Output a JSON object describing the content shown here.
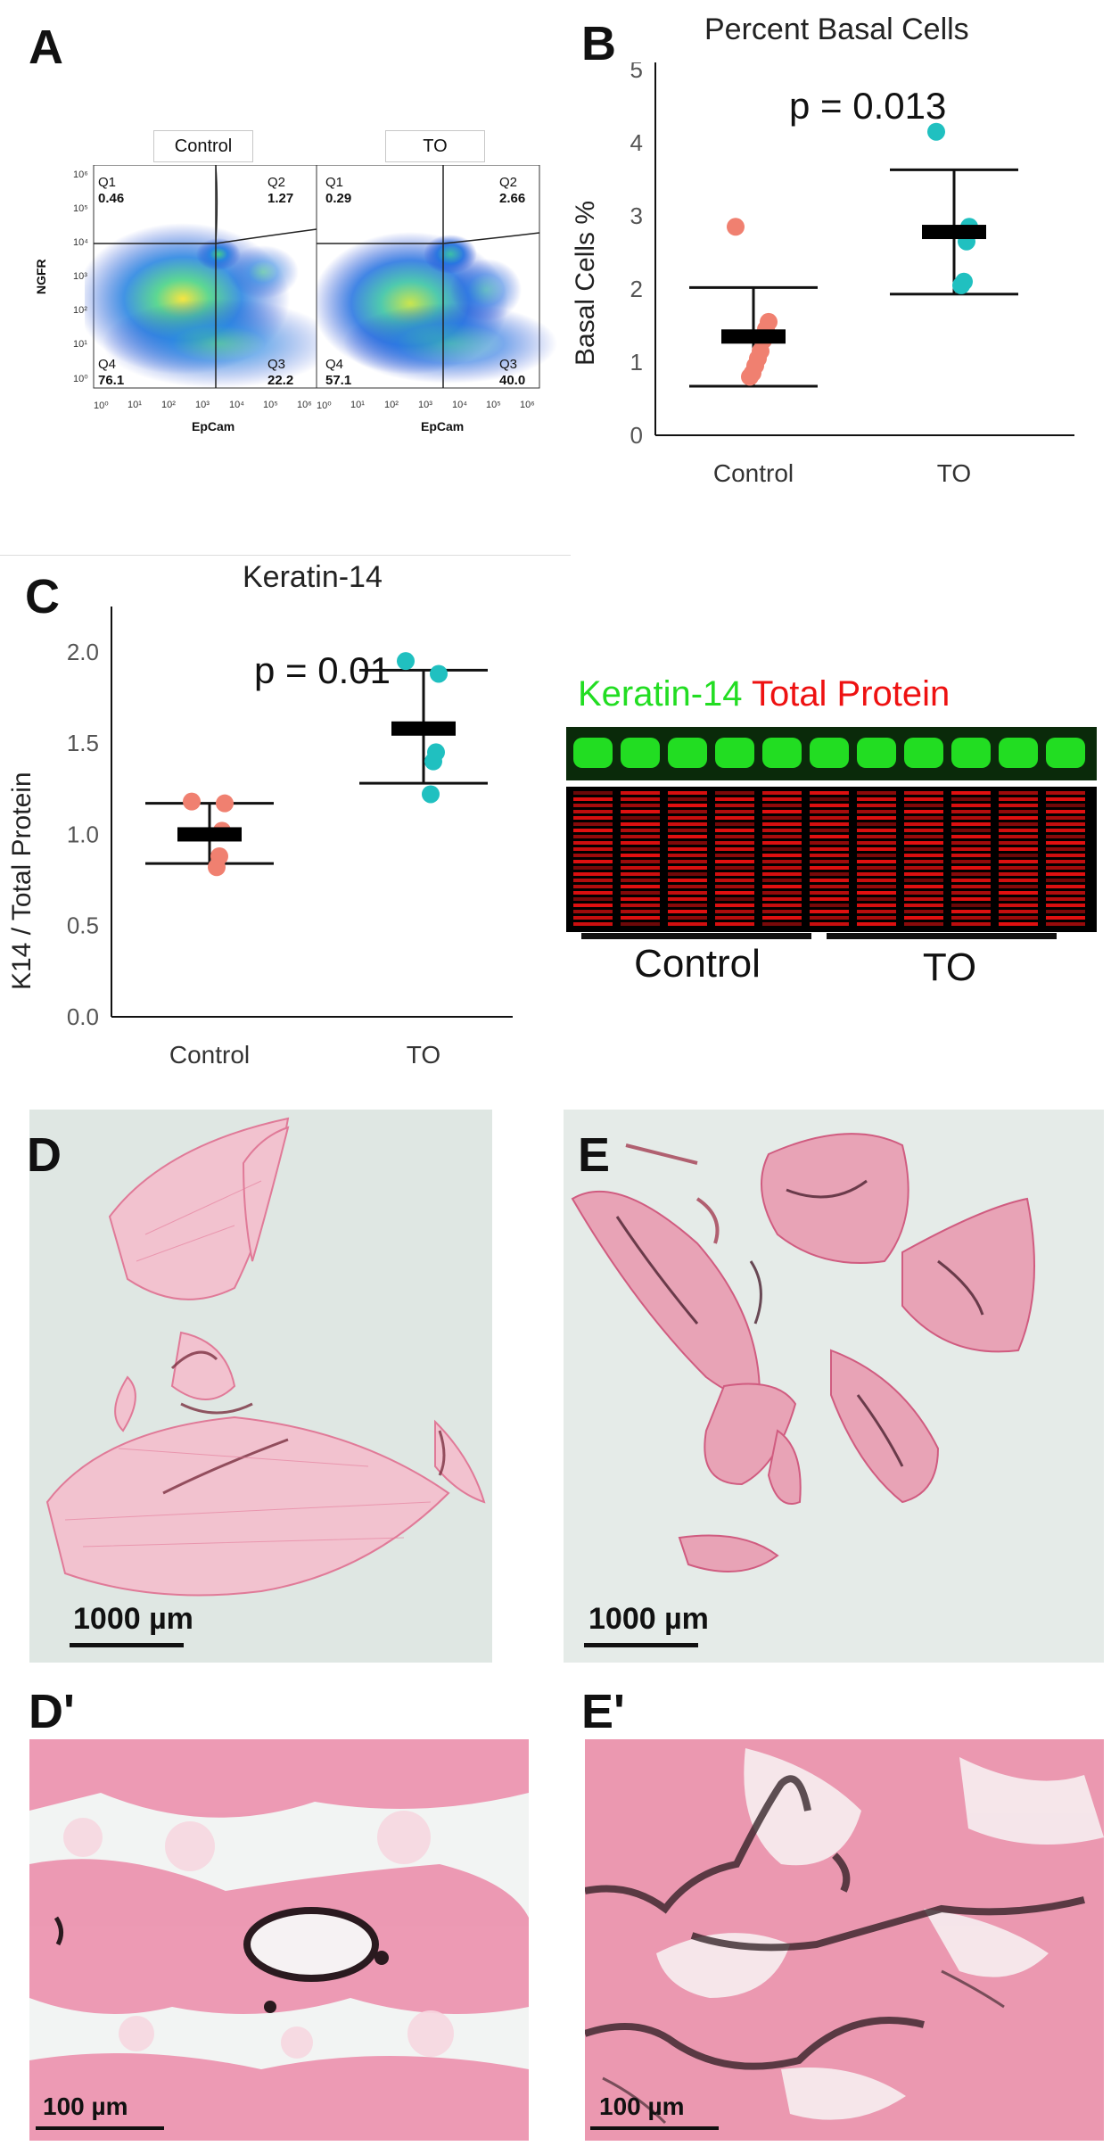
{
  "panels": {
    "A": {
      "letter": "A",
      "tabs": [
        "Control",
        "TO"
      ],
      "y_axis_label": "NGFR",
      "x_axis_label": "EpCam",
      "quadrants": [
        {
          "q1_name": "Q1",
          "q1": "0.46",
          "q2_name": "Q2",
          "q2": "1.27",
          "q3_name": "Q3",
          "q3": "22.2",
          "q4_name": "Q4",
          "q4": "76.1"
        },
        {
          "q1_name": "Q1",
          "q1": "0.29",
          "q2_name": "Q2",
          "q2": "2.66",
          "q3_name": "Q3",
          "q3": "40.0",
          "q4_name": "Q4",
          "q4": "57.1"
        }
      ],
      "y_ticks": [
        "10⁶",
        "10⁵",
        "10⁴",
        "10³",
        "10²",
        "10¹",
        "10⁰"
      ],
      "x_ticks": [
        "10⁰",
        "10¹",
        "10²",
        "10³",
        "10⁴",
        "10⁵",
        "10⁶"
      ]
    },
    "B": {
      "letter": "B"
    },
    "C": {
      "letter": "C"
    },
    "D": {
      "letter": "D",
      "scale": "1000 µm"
    },
    "E": {
      "letter": "E",
      "scale": "1000 µm"
    },
    "Dp": {
      "letter": "D'",
      "scale": "100 µm"
    },
    "Ep": {
      "letter": "E'",
      "scale": "100 µm"
    }
  },
  "blot": {
    "title_green": "Keratin-14",
    "title_red": "Total Protein",
    "label_control": "Control",
    "label_to": "TO",
    "green_color": "#22dd22",
    "red_color": "#ee1111"
  },
  "chart_data": [
    {
      "type": "scatter",
      "title": "Percent Basal Cells",
      "ylabel": "Basal Cells %",
      "xlabel": "",
      "categories": [
        "Control",
        "TO"
      ],
      "ylim": [
        0,
        5
      ],
      "yticks": [
        0,
        1,
        2,
        3,
        4,
        5
      ],
      "annotation": "p = 0.013",
      "colors": [
        "#f08070",
        "#20c0c0"
      ],
      "points": [
        [
          2.85,
          1.55,
          1.45,
          1.3,
          1.15,
          1.05,
          0.95,
          0.85,
          0.8
        ],
        [
          4.15,
          2.85,
          2.65,
          2.1,
          2.05
        ]
      ],
      "mean": [
        1.35,
        2.78
      ],
      "error_low": [
        0.67,
        1.93
      ],
      "error_high": [
        2.02,
        3.63
      ]
    },
    {
      "type": "scatter",
      "title": "Keratin-14",
      "ylabel": "K14 / Total Protein",
      "xlabel": "",
      "categories": [
        "Control",
        "TO"
      ],
      "ylim": [
        0,
        2.2
      ],
      "yticks": [
        0.0,
        0.5,
        1.0,
        1.5,
        2.0
      ],
      "annotation": "p = 0.01",
      "colors": [
        "#f08070",
        "#20c0c0"
      ],
      "points": [
        [
          1.18,
          1.17,
          1.02,
          0.88,
          0.82
        ],
        [
          1.95,
          1.88,
          1.45,
          1.4,
          1.22
        ]
      ],
      "mean": [
        1.0,
        1.58
      ],
      "error_low": [
        0.84,
        1.28
      ],
      "error_high": [
        1.17,
        1.9
      ]
    }
  ]
}
